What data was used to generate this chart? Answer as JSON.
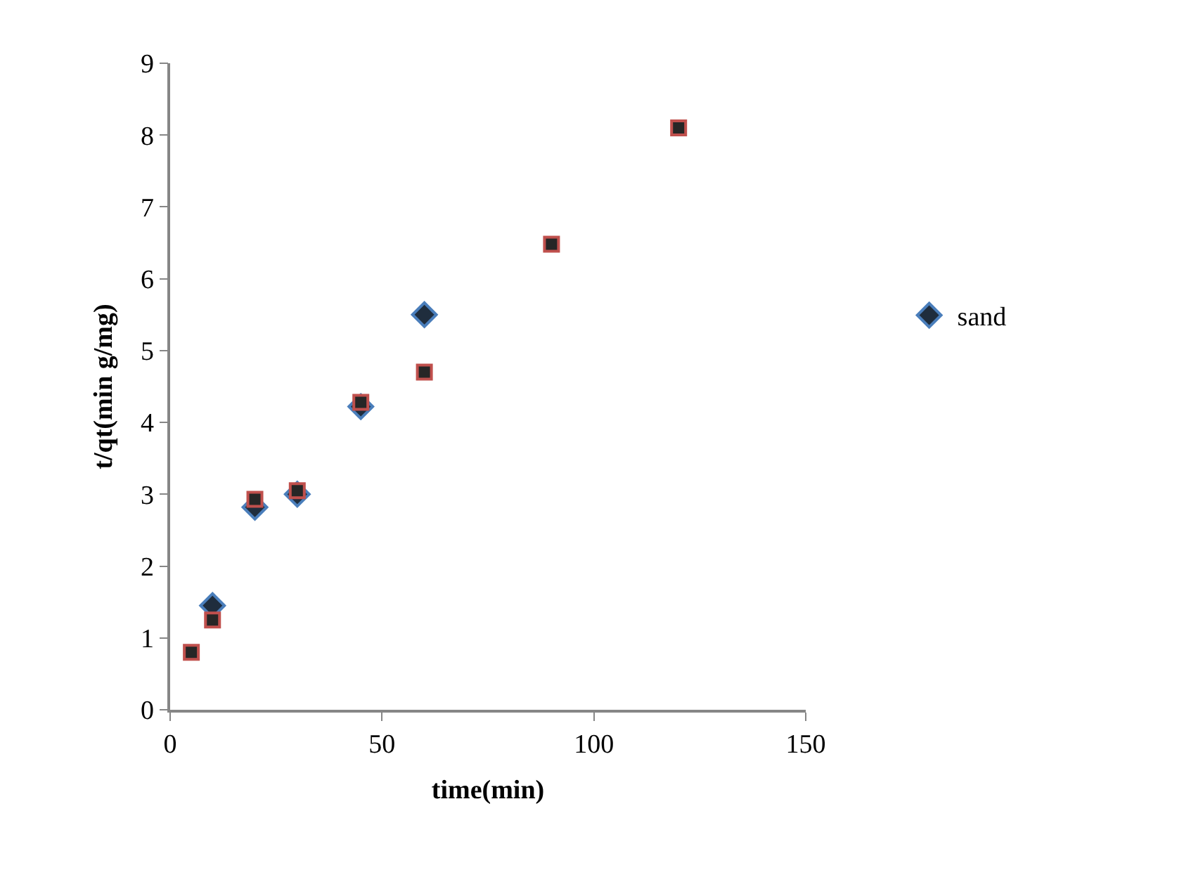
{
  "chart_data": {
    "type": "scatter",
    "xlabel": "time(min)",
    "ylabel": "t/qt(min g/mg)",
    "xlim": [
      0,
      150
    ],
    "xticks": [
      0,
      50,
      100,
      150
    ],
    "ylim": [
      0,
      9
    ],
    "yticks": [
      0,
      1,
      2,
      3,
      4,
      5,
      6,
      7,
      8,
      9
    ],
    "legend": "right",
    "series": [
      {
        "name": "sand",
        "color": "#4a7ebb",
        "marker": "diamond",
        "x": [
          10,
          20,
          30,
          45,
          60
        ],
        "values": [
          1.45,
          2.82,
          3.0,
          4.22,
          5.5
        ]
      },
      {
        "color": "#c0504d",
        "marker": "square",
        "x": [
          5,
          10,
          20,
          30,
          45,
          60,
          90,
          120
        ],
        "values": [
          0.8,
          1.25,
          2.93,
          3.05,
          4.28,
          4.7,
          6.48,
          8.1
        ]
      }
    ]
  }
}
